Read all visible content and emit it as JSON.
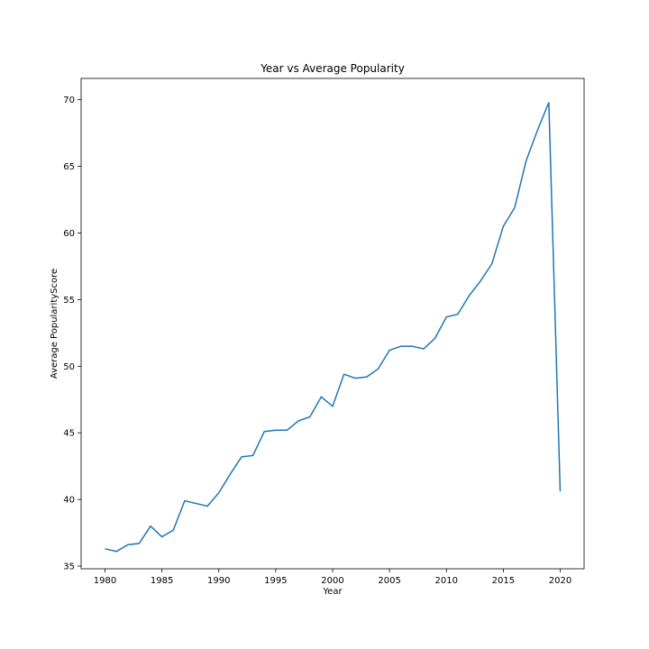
{
  "chart_data": {
    "type": "line",
    "title": "Year vs Average Popularity",
    "xlabel": "Year",
    "ylabel": "Average PopularityScore",
    "xlim": [
      1977.9,
      2022.1
    ],
    "ylim": [
      34.8,
      71.6
    ],
    "xticks": [
      1980,
      1985,
      1990,
      1995,
      2000,
      2005,
      2010,
      2015,
      2020
    ],
    "yticks": [
      35,
      40,
      45,
      50,
      55,
      60,
      65,
      70
    ],
    "grid": false,
    "color": "#1f77b4",
    "series": [
      {
        "x": [
          1980,
          1981,
          1982,
          1983,
          1984,
          1985,
          1986,
          1987,
          1988,
          1989,
          1990,
          1991,
          1992,
          1993,
          1994,
          1995,
          1996,
          1997,
          1998,
          1999,
          2000,
          2001,
          2002,
          2003,
          2004,
          2005,
          2006,
          2007,
          2008,
          2009,
          2010,
          2011,
          2012,
          2013,
          2014,
          2015,
          2016,
          2017,
          2018,
          2019,
          2020
        ],
        "values": [
          36.3,
          36.1,
          36.6,
          36.7,
          38.0,
          37.2,
          37.7,
          39.9,
          39.7,
          39.5,
          40.5,
          41.9,
          43.2,
          43.3,
          45.1,
          45.2,
          45.2,
          45.9,
          46.2,
          47.7,
          47.0,
          49.4,
          49.1,
          49.2,
          49.8,
          51.2,
          51.5,
          51.5,
          51.3,
          52.1,
          53.7,
          53.9,
          55.3,
          56.4,
          57.7,
          60.5,
          61.9,
          65.4,
          67.7,
          69.8,
          40.6
        ]
      }
    ]
  }
}
